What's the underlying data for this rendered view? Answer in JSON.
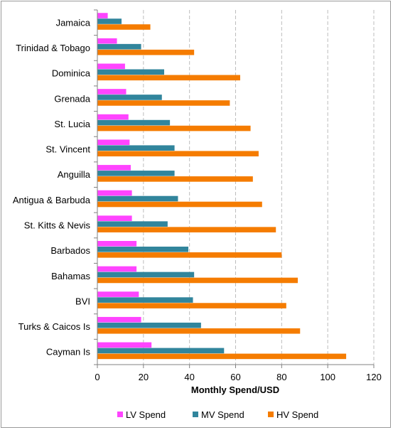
{
  "chart_data": {
    "type": "bar",
    "orientation": "horizontal",
    "categories": [
      "Jamaica",
      "Trinidad & Tobago",
      "Dominica",
      "Grenada",
      "St. Lucia",
      "St. Vincent",
      "Anguilla",
      "Antigua & Barbuda",
      "St. Kitts & Nevis",
      "Barbados",
      "Bahamas",
      "BVI",
      "Turks & Caicos Is",
      "Cayman Is"
    ],
    "series": [
      {
        "name": "LV Spend",
        "color": "#ff44ff",
        "values": [
          4.5,
          8.5,
          12,
          12.5,
          13.5,
          14,
          14.5,
          15,
          15,
          17,
          17,
          18,
          19,
          23.5
        ]
      },
      {
        "name": "MV Spend",
        "color": "#31859c",
        "values": [
          10.5,
          19,
          29,
          28,
          31.5,
          33.5,
          33.5,
          35,
          30.5,
          39.5,
          42,
          41.5,
          45,
          55
        ]
      },
      {
        "name": "HV Spend",
        "color": "#f57c00",
        "values": [
          23,
          42,
          62,
          57.5,
          66.5,
          70,
          67.5,
          71.5,
          77.5,
          80,
          87,
          82,
          88,
          108
        ]
      }
    ],
    "xlabel": "Monthly Spend/USD",
    "xlim": [
      0,
      120
    ],
    "xticks": [
      "0",
      "20",
      "40",
      "60",
      "80",
      "100",
      "120"
    ],
    "grid": "vertical dashed",
    "legend": "bottom"
  }
}
